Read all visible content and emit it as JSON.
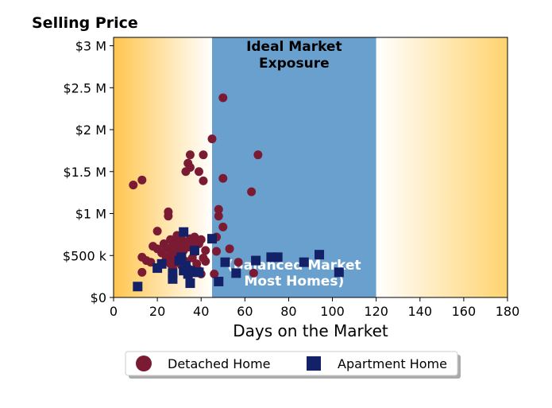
{
  "chart_data": {
    "type": "scatter",
    "title": "Selling Price",
    "xlabel": "Days on the Market",
    "ylabel": "",
    "xlim": [
      0,
      180
    ],
    "ylim": [
      0,
      3100000
    ],
    "x_ticks": [
      0,
      20,
      40,
      60,
      80,
      100,
      120,
      140,
      160,
      180
    ],
    "x_tick_labels": [
      "0",
      "20",
      "40",
      "60",
      "80",
      "100",
      "120",
      "140",
      "160",
      "180"
    ],
    "y_ticks": [
      0,
      500000,
      1000000,
      1500000,
      2000000,
      2500000,
      3000000
    ],
    "y_tick_labels": [
      "$0",
      "$500 k",
      "$1 M",
      "$1.5 M",
      "$2 M",
      "$2.5 M",
      "$3 M"
    ],
    "grid": false,
    "legend_position": "bottom-center",
    "zones": [
      {
        "x_start": 0,
        "x_end": 45,
        "fill": "gradient-orange",
        "label_lines": [],
        "note_lines": []
      },
      {
        "x_start": 45,
        "x_end": 120,
        "fill": "#6aa0cd",
        "label_lines": [
          "Ideal Market",
          "Exposure"
        ],
        "note_lines": [
          "(Balanced Market",
          "Most Homes)"
        ]
      },
      {
        "x_start": 120,
        "x_end": 180,
        "fill": "gradient-orange",
        "label_lines": [],
        "note_lines": []
      }
    ],
    "series": [
      {
        "name": "Detached Home",
        "marker": "circle",
        "color": "#7a1a33",
        "points": [
          [
            9,
            1340000
          ],
          [
            13,
            1400000
          ],
          [
            13,
            480000
          ],
          [
            13,
            300000
          ],
          [
            15,
            440000
          ],
          [
            17,
            420000
          ],
          [
            18,
            610000
          ],
          [
            20,
            790000
          ],
          [
            20,
            580000
          ],
          [
            22,
            530000
          ],
          [
            23,
            640000
          ],
          [
            24,
            590000
          ],
          [
            24,
            460000
          ],
          [
            25,
            1020000
          ],
          [
            25,
            970000
          ],
          [
            25,
            490000
          ],
          [
            26,
            690000
          ],
          [
            26,
            560000
          ],
          [
            26,
            400000
          ],
          [
            27,
            620000
          ],
          [
            27,
            450000
          ],
          [
            27,
            350000
          ],
          [
            28,
            580000
          ],
          [
            28,
            500000
          ],
          [
            29,
            740000
          ],
          [
            29,
            660000
          ],
          [
            29,
            420000
          ],
          [
            30,
            630000
          ],
          [
            30,
            540000
          ],
          [
            31,
            700000
          ],
          [
            31,
            600000
          ],
          [
            31,
            380000
          ],
          [
            32,
            640000
          ],
          [
            32,
            560000
          ],
          [
            33,
            1500000
          ],
          [
            33,
            660000
          ],
          [
            33,
            430000
          ],
          [
            34,
            1600000
          ],
          [
            34,
            600000
          ],
          [
            34,
            350000
          ],
          [
            35,
            1700000
          ],
          [
            35,
            1550000
          ],
          [
            35,
            700000
          ],
          [
            36,
            640000
          ],
          [
            36,
            470000
          ],
          [
            37,
            720000
          ],
          [
            37,
            540000
          ],
          [
            38,
            400000
          ],
          [
            39,
            1500000
          ],
          [
            39,
            640000
          ],
          [
            39,
            320000
          ],
          [
            40,
            690000
          ],
          [
            40,
            280000
          ],
          [
            41,
            1700000
          ],
          [
            41,
            1390000
          ],
          [
            41,
            470000
          ],
          [
            42,
            560000
          ],
          [
            42,
            430000
          ],
          [
            45,
            1890000
          ],
          [
            46,
            280000
          ],
          [
            47,
            720000
          ],
          [
            47,
            550000
          ],
          [
            48,
            1050000
          ],
          [
            48,
            970000
          ],
          [
            50,
            2380000
          ],
          [
            50,
            1420000
          ],
          [
            50,
            840000
          ],
          [
            53,
            580000
          ],
          [
            57,
            420000
          ],
          [
            63,
            1260000
          ],
          [
            64,
            290000
          ],
          [
            66,
            1700000
          ]
        ]
      },
      {
        "name": "Apartment Home",
        "marker": "square",
        "color": "#132169",
        "points": [
          [
            11,
            130000
          ],
          [
            20,
            350000
          ],
          [
            22,
            400000
          ],
          [
            27,
            220000
          ],
          [
            27,
            290000
          ],
          [
            30,
            440000
          ],
          [
            31,
            480000
          ],
          [
            32,
            780000
          ],
          [
            32,
            320000
          ],
          [
            33,
            380000
          ],
          [
            34,
            280000
          ],
          [
            35,
            170000
          ],
          [
            35,
            320000
          ],
          [
            37,
            560000
          ],
          [
            37,
            300000
          ],
          [
            39,
            300000
          ],
          [
            45,
            700000
          ],
          [
            48,
            190000
          ],
          [
            51,
            420000
          ],
          [
            56,
            290000
          ],
          [
            65,
            440000
          ],
          [
            72,
            480000
          ],
          [
            75,
            480000
          ],
          [
            87,
            420000
          ],
          [
            94,
            510000
          ],
          [
            103,
            300000
          ]
        ]
      }
    ]
  }
}
